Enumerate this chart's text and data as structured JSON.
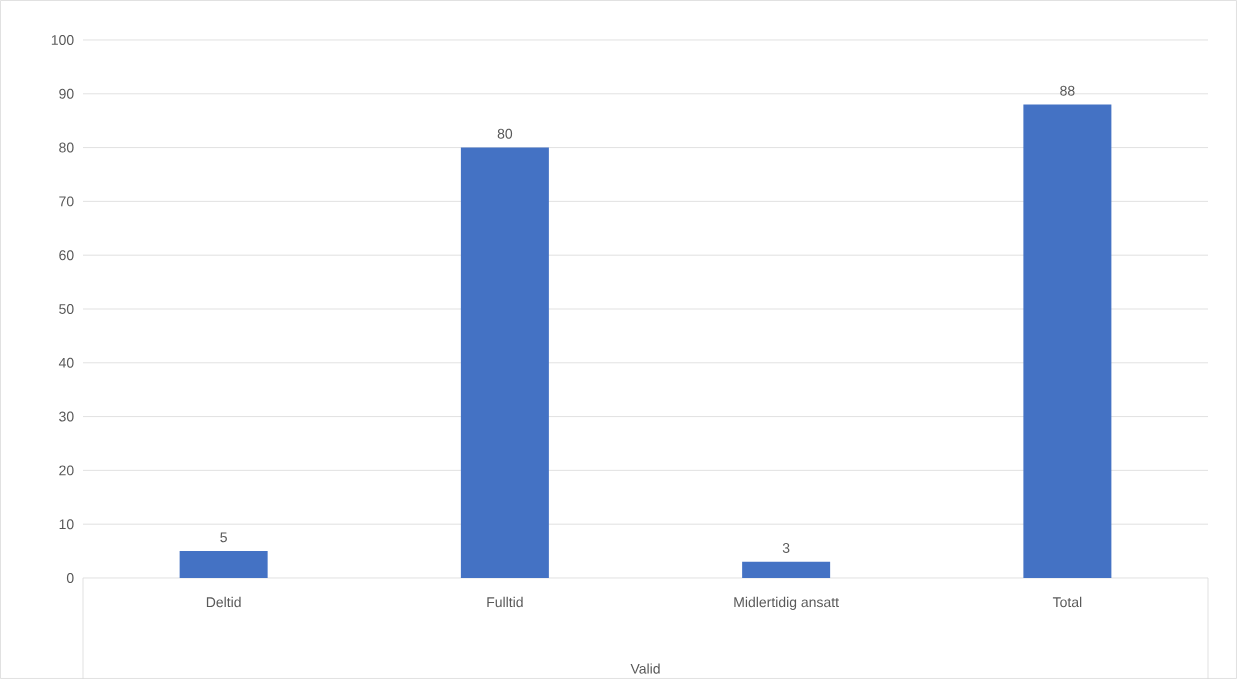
{
  "chart_data": {
    "type": "bar",
    "xlabel": "Valid",
    "categories": [
      "Deltid",
      "Fulltid",
      "Midlertidig ansatt",
      "Total"
    ],
    "values": [
      5,
      80,
      3,
      88
    ],
    "color": "#4472c4",
    "ylim": [
      0,
      100
    ],
    "yticks": [
      0,
      10,
      20,
      30,
      40,
      50,
      60,
      70,
      80,
      90,
      100
    ],
    "grid": "y",
    "data_labels": true
  }
}
